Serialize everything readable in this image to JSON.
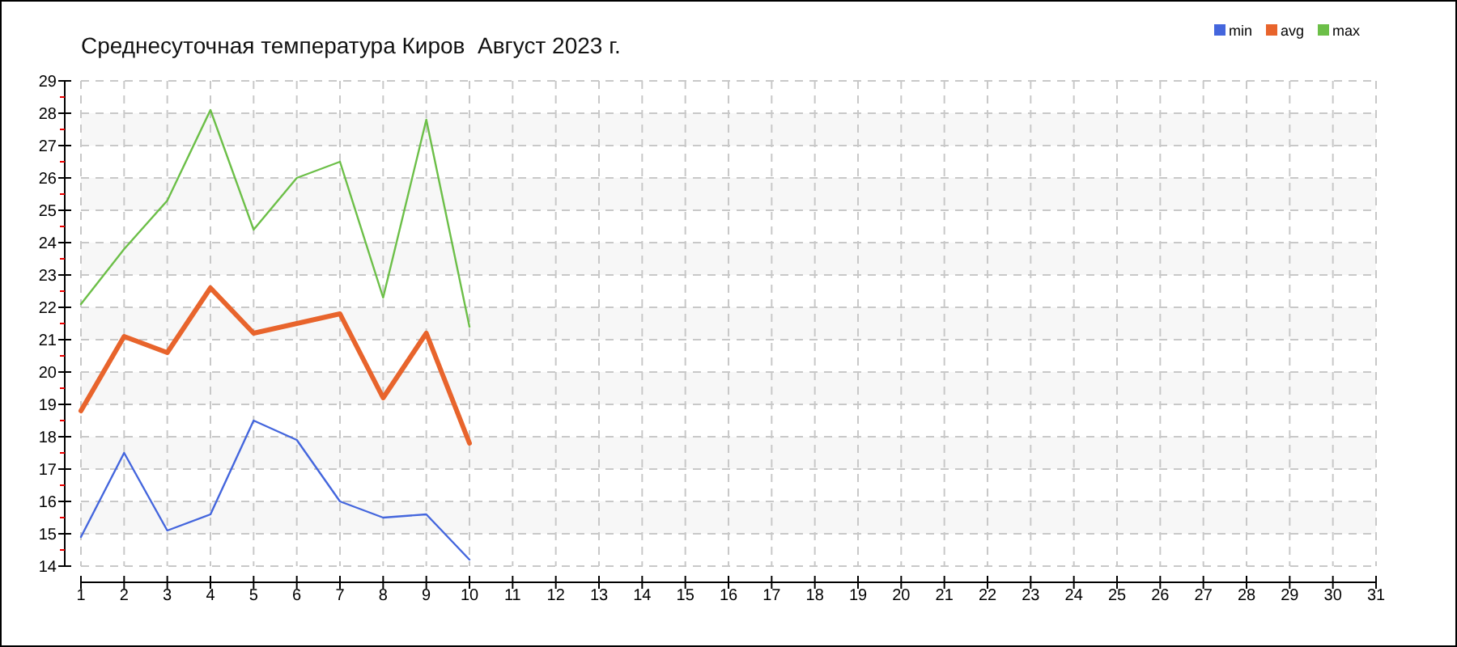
{
  "chart_data": {
    "type": "line",
    "title": "Среднесуточная температура Киров  Август 2023 г.",
    "x": [
      1,
      2,
      3,
      4,
      5,
      6,
      7,
      8,
      9,
      10
    ],
    "series": [
      {
        "name": "min",
        "color": "#4466dd",
        "values": [
          14.9,
          17.5,
          15.1,
          15.6,
          18.5,
          17.9,
          16.0,
          15.5,
          15.6,
          14.2
        ]
      },
      {
        "name": "avg",
        "color": "#e8642c",
        "values": [
          18.8,
          21.1,
          20.6,
          22.6,
          21.2,
          21.5,
          21.8,
          19.2,
          21.2,
          17.8
        ]
      },
      {
        "name": "max",
        "color": "#6cbf48",
        "values": [
          22.1,
          23.8,
          25.3,
          28.1,
          24.4,
          26.0,
          26.5,
          22.3,
          27.8,
          21.4
        ]
      }
    ],
    "xlim": [
      1,
      31
    ],
    "xticks": [
      1,
      2,
      3,
      4,
      5,
      6,
      7,
      8,
      9,
      10,
      11,
      12,
      13,
      14,
      15,
      16,
      17,
      18,
      19,
      20,
      21,
      22,
      23,
      24,
      25,
      26,
      27,
      28,
      29,
      30,
      31
    ],
    "ylim": [
      14,
      29
    ],
    "yticks": [
      14,
      {
        "value": 14.5,
        "label": null
      },
      15,
      {
        "value": 15.5,
        "label": null
      },
      16,
      {
        "value": 16.5,
        "label": null
      },
      17,
      {
        "value": 17.5,
        "label": null
      },
      18,
      {
        "value": 18.5,
        "label": null
      },
      19,
      {
        "value": 19.5,
        "label": null
      },
      20,
      {
        "value": 20.5,
        "label": null
      },
      21,
      {
        "value": 21.5,
        "label": null
      },
      22,
      {
        "value": 22.5,
        "label": null
      },
      23,
      {
        "value": 23.5,
        "label": null
      },
      24,
      {
        "value": 24.5,
        "label": null
      },
      25,
      {
        "value": 25.5,
        "label": null
      },
      26,
      {
        "value": 26.5,
        "label": null
      },
      27,
      {
        "value": 27.5,
        "label": null
      },
      28,
      {
        "value": 28.5,
        "label": null
      },
      29
    ],
    "grid": true,
    "legend": "top right"
  }
}
